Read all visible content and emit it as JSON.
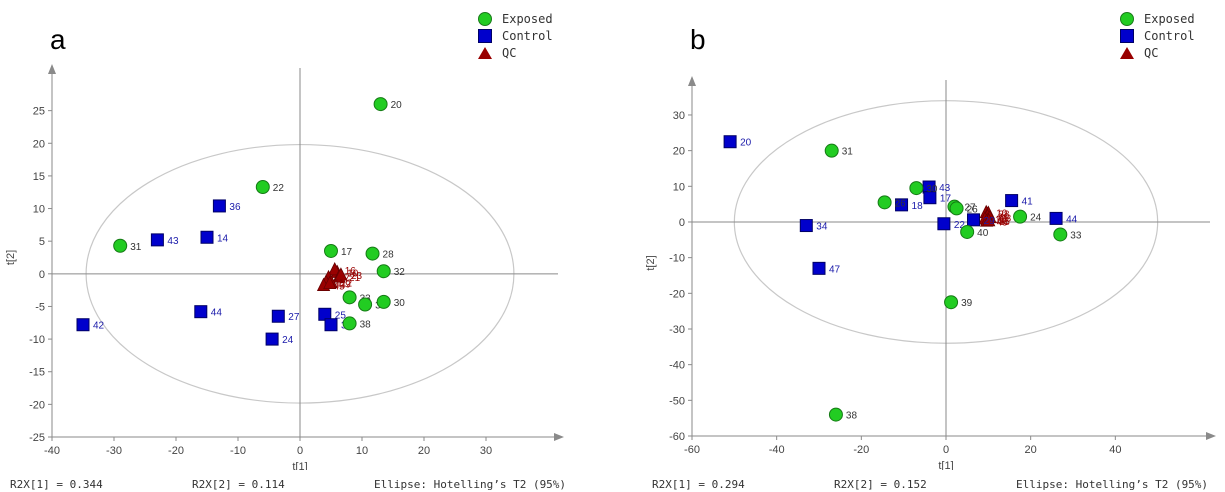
{
  "legend": {
    "exposed": "Exposed",
    "control": "Control",
    "qc": "QC"
  },
  "colors": {
    "exposed": "#22cc22",
    "control": "#0000cc",
    "qc": "#990000",
    "exposed_label": "#333333",
    "control_label": "#1a1aaa",
    "qc_label": "#990000"
  },
  "panels": [
    {
      "letter": "a",
      "footer": {
        "r2x1": "R2X[1] = 0.344",
        "r2x2": "R2X[2] = 0.114",
        "ellipse": "Ellipse: Hotelling’s T2 (95%)"
      }
    },
    {
      "letter": "b",
      "footer": {
        "r2x1": "R2X[1] = 0.294",
        "r2x2": "R2X[2] = 0.152",
        "ellipse": "Ellipse: Hotelling’s T2 (95%)"
      }
    }
  ],
  "chart_data": [
    {
      "type": "scatter",
      "xlabel": "t[1]",
      "ylabel": "t[2]",
      "xlim": [
        -40,
        40
      ],
      "ylim": [
        -25,
        30
      ],
      "xticks": [
        -40,
        -30,
        -20,
        -10,
        0,
        10,
        20,
        30
      ],
      "yticks": [
        -25,
        -20,
        -15,
        -10,
        -5,
        0,
        5,
        10,
        15,
        20,
        25
      ],
      "ellipse": {
        "cx": 0,
        "cy": 0,
        "rx": 34.5,
        "ry": 19.8
      },
      "series": [
        {
          "name": "Exposed",
          "marker": "circle",
          "points": [
            {
              "x": 13,
              "y": 26,
              "label": "20"
            },
            {
              "x": -6,
              "y": 13.3,
              "label": "22"
            },
            {
              "x": -29,
              "y": 4.3,
              "label": "31"
            },
            {
              "x": 5,
              "y": 3.5,
              "label": "17"
            },
            {
              "x": 11.7,
              "y": 3.1,
              "label": "28"
            },
            {
              "x": 13.5,
              "y": 0.4,
              "label": "32"
            },
            {
              "x": 8,
              "y": -3.6,
              "label": "33"
            },
            {
              "x": 10.5,
              "y": -4.7,
              "label": "34"
            },
            {
              "x": 13.5,
              "y": -4.3,
              "label": "30"
            },
            {
              "x": 8,
              "y": -7.6,
              "label": "38"
            }
          ]
        },
        {
          "name": "Control",
          "marker": "square",
          "points": [
            {
              "x": -13,
              "y": 10.4,
              "label": "36"
            },
            {
              "x": -23,
              "y": 5.2,
              "label": "43"
            },
            {
              "x": -15,
              "y": 5.6,
              "label": "14"
            },
            {
              "x": -16,
              "y": -5.8,
              "label": "44"
            },
            {
              "x": -35,
              "y": -7.8,
              "label": "42"
            },
            {
              "x": -3.5,
              "y": -6.5,
              "label": "27"
            },
            {
              "x": -4.5,
              "y": -10,
              "label": "24"
            },
            {
              "x": 4,
              "y": -6.2,
              "label": "25"
            },
            {
              "x": 5,
              "y": -7.8,
              "label": "35"
            }
          ]
        },
        {
          "name": "QC",
          "marker": "triangle",
          "points": [
            {
              "x": 6,
              "y": 0.2,
              "label": "10"
            },
            {
              "x": 5.6,
              "y": 0.6,
              "label": "16"
            },
            {
              "x": 6.3,
              "y": -0.5,
              "label": "21"
            },
            {
              "x": 6.6,
              "y": -0.2,
              "label": "23"
            },
            {
              "x": 4.6,
              "y": -0.6,
              "label": "37"
            },
            {
              "x": 4.2,
              "y": -1.3,
              "label": "11"
            },
            {
              "x": 5.0,
              "y": -1.3,
              "label": "12"
            },
            {
              "x": 3.8,
              "y": -1.8,
              "label": "45"
            },
            {
              "x": 4.8,
              "y": -1.5,
              "label": "29"
            }
          ]
        }
      ]
    },
    {
      "type": "scatter",
      "xlabel": "t[1]",
      "ylabel": "t[2]",
      "xlim": [
        -60,
        60
      ],
      "ylim": [
        -60,
        37
      ],
      "xticks": [
        -60,
        -40,
        -20,
        0,
        20,
        40
      ],
      "yticks": [
        -60,
        -50,
        -40,
        -30,
        -20,
        -10,
        0,
        10,
        20,
        30
      ],
      "ellipse": {
        "cx": 0,
        "cy": 0,
        "rx": 50,
        "ry": 34
      },
      "series": [
        {
          "name": "Exposed",
          "marker": "circle",
          "points": [
            {
              "x": -27,
              "y": 20,
              "label": "31"
            },
            {
              "x": -14.5,
              "y": 5.5,
              "label": "26"
            },
            {
              "x": -7,
              "y": 9.5,
              "label": "30"
            },
            {
              "x": 2,
              "y": 4.3,
              "label": "27"
            },
            {
              "x": 2.5,
              "y": 3.8,
              "label": "26"
            },
            {
              "x": 5,
              "y": -2.8,
              "label": "40"
            },
            {
              "x": 17.5,
              "y": 1.5,
              "label": "24"
            },
            {
              "x": 27,
              "y": -3.5,
              "label": "33"
            },
            {
              "x": 1.2,
              "y": -22.5,
              "label": "39"
            },
            {
              "x": -26,
              "y": -54,
              "label": "38"
            }
          ]
        },
        {
          "name": "Control",
          "marker": "square",
          "points": [
            {
              "x": -51,
              "y": 22.5,
              "label": "20"
            },
            {
              "x": -33,
              "y": -1,
              "label": "34"
            },
            {
              "x": -30,
              "y": -13,
              "label": "47"
            },
            {
              "x": -10.5,
              "y": 4.8,
              "label": "18"
            },
            {
              "x": -4,
              "y": 9.8,
              "label": "43"
            },
            {
              "x": -3.8,
              "y": 6.8,
              "label": "17"
            },
            {
              "x": -0.5,
              "y": -0.5,
              "label": "22"
            },
            {
              "x": 6.5,
              "y": 0.6,
              "label": "29"
            },
            {
              "x": 15.5,
              "y": 6,
              "label": "41"
            },
            {
              "x": 26,
              "y": 1,
              "label": "44"
            }
          ]
        },
        {
          "name": "QC",
          "marker": "triangle",
          "points": [
            {
              "x": 9.5,
              "y": 2.6,
              "label": "10"
            },
            {
              "x": 10.0,
              "y": 2.4,
              "label": "28"
            },
            {
              "x": 9.8,
              "y": 1.6,
              "label": "21"
            },
            {
              "x": 10.4,
              "y": 1.2,
              "label": "23"
            },
            {
              "x": 9.2,
              "y": 0.8,
              "label": "11"
            },
            {
              "x": 9.9,
              "y": 0.5,
              "label": "12"
            },
            {
              "x": 9.6,
              "y": 0.2,
              "label": "45"
            },
            {
              "x": 10.1,
              "y": 0.3,
              "label": "35"
            }
          ]
        }
      ]
    }
  ]
}
